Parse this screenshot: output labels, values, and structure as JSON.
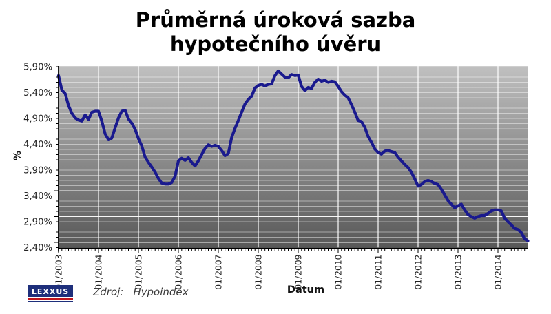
{
  "title": {
    "line1": "Průměrná úroková sazba",
    "line2": "hypotečního úvěru"
  },
  "footer": {
    "logo_text": "LEXXUS",
    "source_label": "Zdroj:",
    "source_value": "Hypoindex"
  },
  "chart_data": {
    "type": "line",
    "title": "Průměrná úroková sazba hypotečního úvěru",
    "xlabel": "Datum",
    "ylabel": "%",
    "ylim": [
      2.4,
      5.9
    ],
    "y_major_step": 0.5,
    "y_minor_step": 0.1,
    "x_unit": "month",
    "grid": "on",
    "legend": "none",
    "colors": {
      "line": "#1a1a8e",
      "plot_gradient_top": "#c0c0c0",
      "plot_gradient_bottom": "#585858",
      "gridline": "#ffffff",
      "axis": "#000000",
      "tick_label": "#222222"
    },
    "y_ticks": [
      {
        "value": 5.9,
        "label": "5,90%"
      },
      {
        "value": 5.4,
        "label": "5,40%"
      },
      {
        "value": 4.9,
        "label": "4,90%"
      },
      {
        "value": 4.4,
        "label": "4,40%"
      },
      {
        "value": 3.9,
        "label": "3,90%"
      },
      {
        "value": 3.4,
        "label": "3,40%"
      },
      {
        "value": 2.9,
        "label": "2,90%"
      },
      {
        "value": 2.4,
        "label": "2,40%"
      }
    ],
    "x_ticks": [
      {
        "month": 0,
        "label": "01/2003"
      },
      {
        "month": 12,
        "label": "01/2004"
      },
      {
        "month": 24,
        "label": "01/2005"
      },
      {
        "month": 36,
        "label": "01/2006"
      },
      {
        "month": 48,
        "label": "01/2007"
      },
      {
        "month": 60,
        "label": "01/2008"
      },
      {
        "month": 72,
        "label": "01/2009"
      },
      {
        "month": 84,
        "label": "01/2010"
      },
      {
        "month": 96,
        "label": "01/2011"
      },
      {
        "month": 108,
        "label": "01/2012"
      },
      {
        "month": 120,
        "label": "01/2013"
      },
      {
        "month": 132,
        "label": "01/2014"
      }
    ],
    "series": [
      {
        "name": "Průměrná úroková sazba hypotečního úvěru (%)",
        "x_start": "01/2003",
        "x_end": "10/2014",
        "color": "#1a1a8e",
        "values": [
          5.73,
          5.45,
          5.38,
          5.15,
          5.0,
          4.91,
          4.87,
          4.85,
          4.97,
          4.88,
          5.02,
          5.04,
          5.04,
          4.85,
          4.6,
          4.49,
          4.52,
          4.72,
          4.91,
          5.04,
          5.06,
          4.89,
          4.81,
          4.69,
          4.51,
          4.37,
          4.15,
          4.05,
          3.96,
          3.86,
          3.74,
          3.65,
          3.63,
          3.63,
          3.66,
          3.78,
          4.08,
          4.13,
          4.09,
          4.14,
          4.05,
          3.98,
          4.08,
          4.2,
          4.32,
          4.39,
          4.36,
          4.38,
          4.36,
          4.28,
          4.18,
          4.22,
          4.53,
          4.71,
          4.86,
          5.02,
          5.18,
          5.27,
          5.33,
          5.49,
          5.54,
          5.56,
          5.53,
          5.56,
          5.57,
          5.73,
          5.82,
          5.76,
          5.7,
          5.69,
          5.75,
          5.73,
          5.74,
          5.52,
          5.44,
          5.5,
          5.48,
          5.6,
          5.66,
          5.62,
          5.64,
          5.6,
          5.62,
          5.61,
          5.52,
          5.42,
          5.35,
          5.3,
          5.17,
          5.02,
          4.86,
          4.84,
          4.73,
          4.55,
          4.44,
          4.31,
          4.24,
          4.21,
          4.27,
          4.28,
          4.26,
          4.24,
          4.15,
          4.08,
          4.01,
          3.95,
          3.86,
          3.73,
          3.59,
          3.62,
          3.68,
          3.7,
          3.68,
          3.64,
          3.62,
          3.53,
          3.42,
          3.31,
          3.24,
          3.17,
          3.21,
          3.24,
          3.13,
          3.04,
          3.0,
          2.97,
          3.0,
          3.02,
          3.02,
          3.06,
          3.11,
          3.13,
          3.13,
          3.11,
          2.97,
          2.9,
          2.84,
          2.77,
          2.75,
          2.69,
          2.57,
          2.53
        ]
      }
    ]
  }
}
